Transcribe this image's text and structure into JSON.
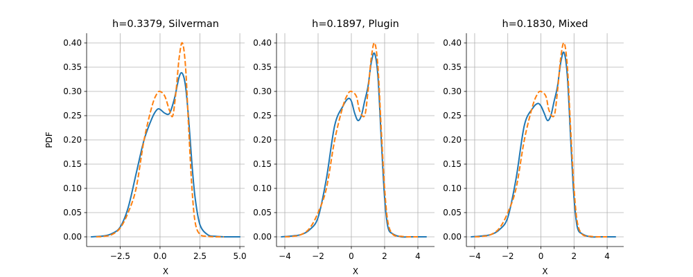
{
  "chart_data": [
    {
      "type": "line",
      "title": "h=0.3379, Silverman",
      "xlabel": "X",
      "ylabel": "PDF",
      "xlim": [
        -4.6,
        5.3
      ],
      "ylim": [
        -0.02,
        0.42
      ],
      "xticks": [
        -2.5,
        0.0,
        2.5,
        5.0
      ],
      "xtick_labels": [
        "−2.5",
        "0.0",
        "2.5",
        "5.0"
      ],
      "yticks": [
        0.0,
        0.05,
        0.1,
        0.15,
        0.2,
        0.25,
        0.3,
        0.35,
        0.4
      ],
      "ytick_labels": [
        "0.00",
        "0.05",
        "0.10",
        "0.15",
        "0.20",
        "0.25",
        "0.30",
        "0.35",
        "0.40"
      ],
      "grid": true,
      "series": [
        {
          "style": "solid",
          "color": "#1f77b4",
          "x": [
            -4.3,
            -3.5,
            -3.0,
            -2.5,
            -2.0,
            -1.5,
            -1.0,
            -0.5,
            -0.2,
            0.0,
            0.3,
            0.6,
            0.9,
            1.2,
            1.4,
            1.6,
            1.8,
            2.0,
            2.2,
            2.5,
            3.0,
            3.5,
            4.0,
            4.5,
            5.0
          ],
          "y": [
            0.0,
            0.002,
            0.007,
            0.02,
            0.06,
            0.13,
            0.2,
            0.245,
            0.262,
            0.263,
            0.255,
            0.255,
            0.285,
            0.33,
            0.337,
            0.31,
            0.24,
            0.15,
            0.08,
            0.025,
            0.004,
            0.001,
            0.0,
            0.0,
            0.0
          ]
        },
        {
          "style": "dashed",
          "color": "#ff7f0e",
          "x": [
            -4.0,
            -3.5,
            -3.0,
            -2.5,
            -2.0,
            -1.5,
            -1.0,
            -0.5,
            -0.2,
            0.0,
            0.3,
            0.6,
            0.8,
            1.0,
            1.2,
            1.4,
            1.6,
            1.8,
            2.0,
            2.2,
            2.5,
            3.0,
            3.5,
            4.0
          ],
          "y": [
            0.0,
            0.001,
            0.005,
            0.018,
            0.05,
            0.1,
            0.2,
            0.27,
            0.295,
            0.3,
            0.29,
            0.26,
            0.25,
            0.3,
            0.37,
            0.4,
            0.35,
            0.22,
            0.1,
            0.03,
            0.005,
            0.001,
            0.0,
            0.0
          ]
        }
      ]
    },
    {
      "type": "line",
      "title": "h=0.1897, Plugin",
      "xlabel": "X",
      "ylabel": "",
      "xlim": [
        -4.5,
        5.0
      ],
      "ylim": [
        -0.02,
        0.42
      ],
      "xticks": [
        -4,
        -2,
        0,
        2,
        4
      ],
      "xtick_labels": [
        "−4",
        "−2",
        "0",
        "2",
        "4"
      ],
      "yticks": [
        0.0,
        0.05,
        0.1,
        0.15,
        0.2,
        0.25,
        0.3,
        0.35,
        0.4
      ],
      "ytick_labels": [
        "0.00",
        "0.05",
        "0.10",
        "0.15",
        "0.20",
        "0.25",
        "0.30",
        "0.35",
        "0.40"
      ],
      "grid": true,
      "series": [
        {
          "style": "solid",
          "color": "#1f77b4",
          "x": [
            -4.2,
            -3.5,
            -3.0,
            -2.5,
            -2.0,
            -1.5,
            -1.0,
            -0.5,
            -0.2,
            0.0,
            0.2,
            0.4,
            0.6,
            0.8,
            1.0,
            1.2,
            1.4,
            1.6,
            1.8,
            2.0,
            2.2,
            2.5,
            3.0,
            3.5,
            4.0,
            4.5
          ],
          "y": [
            0.0,
            0.002,
            0.005,
            0.015,
            0.04,
            0.12,
            0.23,
            0.27,
            0.285,
            0.28,
            0.255,
            0.24,
            0.25,
            0.28,
            0.31,
            0.36,
            0.378,
            0.33,
            0.2,
            0.08,
            0.02,
            0.006,
            0.0,
            0.0,
            0.0,
            0.0
          ]
        },
        {
          "style": "dashed",
          "color": "#ff7f0e",
          "x": [
            -4.0,
            -3.5,
            -3.0,
            -2.5,
            -2.0,
            -1.5,
            -1.0,
            -0.5,
            -0.2,
            0.0,
            0.3,
            0.5,
            0.8,
            1.0,
            1.2,
            1.4,
            1.6,
            1.8,
            2.0,
            2.2,
            2.5,
            3.0,
            3.5,
            4.0
          ],
          "y": [
            0.0,
            0.001,
            0.005,
            0.018,
            0.05,
            0.1,
            0.2,
            0.27,
            0.295,
            0.3,
            0.29,
            0.26,
            0.25,
            0.3,
            0.37,
            0.4,
            0.35,
            0.22,
            0.1,
            0.03,
            0.005,
            0.001,
            0.0,
            0.0
          ]
        }
      ]
    },
    {
      "type": "line",
      "title": "h=0.1830, Mixed",
      "xlabel": "X",
      "ylabel": "",
      "xlim": [
        -4.5,
        5.0
      ],
      "ylim": [
        -0.02,
        0.42
      ],
      "xticks": [
        -4,
        -2,
        0,
        2,
        4
      ],
      "xtick_labels": [
        "−4",
        "−2",
        "0",
        "2",
        "4"
      ],
      "yticks": [
        0.0,
        0.05,
        0.1,
        0.15,
        0.2,
        0.25,
        0.3,
        0.35,
        0.4
      ],
      "ytick_labels": [
        "0.00",
        "0.05",
        "0.10",
        "0.15",
        "0.20",
        "0.25",
        "0.30",
        "0.35",
        "0.40"
      ],
      "grid": true,
      "series": [
        {
          "style": "solid",
          "color": "#1f77b4",
          "x": [
            -4.2,
            -3.5,
            -3.0,
            -2.5,
            -2.0,
            -1.5,
            -1.0,
            -0.5,
            -0.2,
            0.0,
            0.2,
            0.4,
            0.6,
            0.8,
            1.0,
            1.2,
            1.4,
            1.6,
            1.8,
            2.0,
            2.2,
            2.5,
            3.0,
            3.5,
            4.0,
            4.5
          ],
          "y": [
            0.0,
            0.002,
            0.005,
            0.015,
            0.04,
            0.12,
            0.23,
            0.265,
            0.275,
            0.27,
            0.255,
            0.24,
            0.25,
            0.28,
            0.31,
            0.36,
            0.38,
            0.33,
            0.2,
            0.08,
            0.02,
            0.006,
            0.0,
            0.0,
            0.0,
            0.0
          ]
        },
        {
          "style": "dashed",
          "color": "#ff7f0e",
          "x": [
            -4.0,
            -3.5,
            -3.0,
            -2.5,
            -2.0,
            -1.5,
            -1.0,
            -0.5,
            -0.2,
            0.0,
            0.3,
            0.5,
            0.8,
            1.0,
            1.2,
            1.4,
            1.6,
            1.8,
            2.0,
            2.2,
            2.5,
            3.0,
            3.5,
            4.0
          ],
          "y": [
            0.0,
            0.001,
            0.005,
            0.018,
            0.05,
            0.1,
            0.2,
            0.27,
            0.295,
            0.3,
            0.29,
            0.26,
            0.25,
            0.3,
            0.37,
            0.4,
            0.35,
            0.22,
            0.1,
            0.03,
            0.005,
            0.001,
            0.0,
            0.0
          ]
        }
      ]
    }
  ]
}
